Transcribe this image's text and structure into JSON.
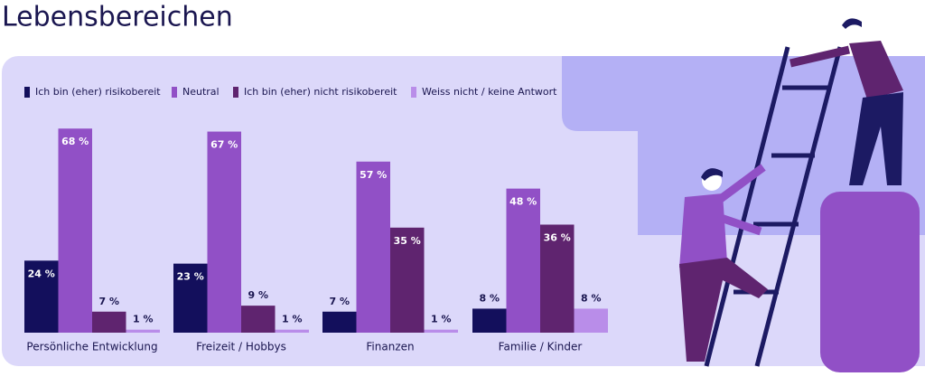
{
  "chart_data": {
    "type": "bar",
    "title": "Lebensbereichen",
    "categories": [
      "Persönliche Entwicklung",
      "Freizeit / Hobbys",
      "Finanzen",
      "Familie / Kinder"
    ],
    "series": [
      {
        "name": "Ich bin (eher) risikobereit",
        "color": "#130f5c",
        "values": [
          24,
          23,
          7,
          8
        ],
        "value_labels": [
          "24 %",
          "23 %",
          "7 %",
          "8 %"
        ]
      },
      {
        "name": "Neutral",
        "color": "#9150c6",
        "values": [
          68,
          67,
          57,
          48
        ],
        "value_labels": [
          "68 %",
          "67 %",
          "57 %",
          "48 %"
        ]
      },
      {
        "name": "Ich bin (eher) nicht risikobereit",
        "color": "#5f246f",
        "values": [
          7,
          9,
          35,
          36
        ],
        "value_labels": [
          "7 %",
          "9 %",
          "35 %",
          "36 %"
        ]
      },
      {
        "name": "Weiss nicht / keine Antwort",
        "color": "#b98de9",
        "values": [
          1,
          1,
          1,
          8
        ],
        "value_labels": [
          "1 %",
          "1 %",
          "1 %",
          "8 %"
        ]
      }
    ]
  }
}
